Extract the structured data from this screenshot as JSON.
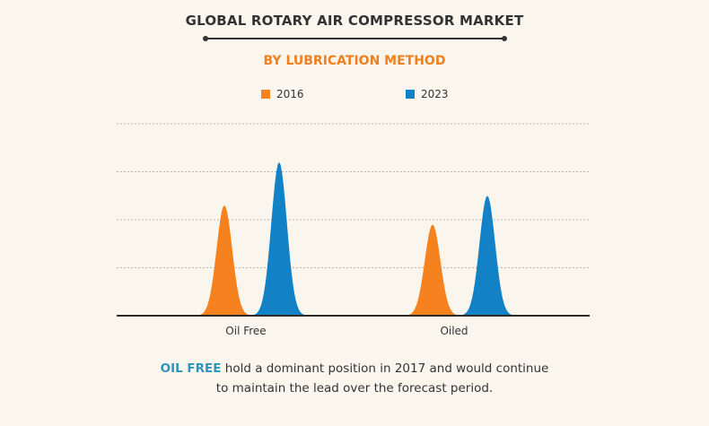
{
  "title": "GLOBAL ROTARY AIR COMPRESSOR MARKET",
  "subtitle": "BY LUBRICATION METHOD",
  "colors": {
    "series_2016": "#f5821f",
    "series_2023": "#1281c6",
    "subtitle": "#f07f1e",
    "highlight": "#2e94b9"
  },
  "chart_data": {
    "type": "area",
    "title": "GLOBAL ROTARY AIR COMPRESSOR MARKET",
    "subtitle": "BY LUBRICATION METHOD",
    "categories": [
      "Oil Free",
      "Oiled"
    ],
    "series": [
      {
        "name": "2016",
        "values": [
          2.3,
          1.9
        ]
      },
      {
        "name": "2023",
        "values": [
          3.2,
          2.5
        ]
      }
    ],
    "ylim": [
      0,
      4
    ],
    "grid": true,
    "legend": "top-center",
    "xlabel": "",
    "ylabel": ""
  },
  "footer": {
    "highlight": "OIL FREE",
    "line1_rest": " hold a dominant position in 2017 and would continue",
    "line2": "to maintain the lead over the forecast period."
  }
}
